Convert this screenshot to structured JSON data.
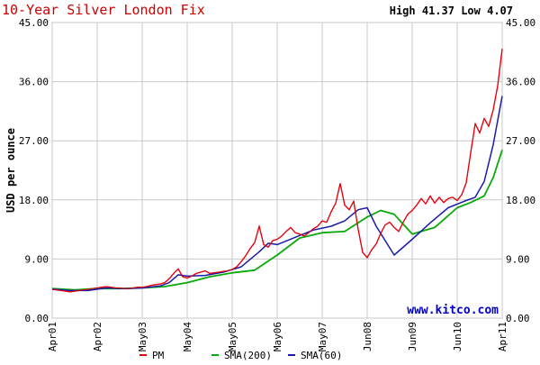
{
  "header": {
    "title": "10-Year Silver London Fix",
    "stats": "High 41.37 Low 4.07"
  },
  "watermark": "www.kitco.com",
  "colors": {
    "title": "#cc0000",
    "pm": "#e8000b",
    "sma200": "#0aa80a",
    "sma60": "#1c1ca8",
    "watermark": "#0000cc",
    "grid": "#c8c8c8",
    "frame": "#808080"
  },
  "chart_data": {
    "type": "line",
    "title": "10-Year Silver London Fix",
    "ylabel": "USD per ounce",
    "xlabel": "",
    "ylim": [
      0,
      45
    ],
    "yticks": [
      "0.00",
      "9.00",
      "18.00",
      "27.00",
      "36.00",
      "45.00"
    ],
    "xticks": [
      "Apr01",
      "Apr02",
      "May03",
      "May04",
      "May05",
      "May06",
      "May07",
      "Jun08",
      "Jun09",
      "Jun10",
      "Apr11"
    ],
    "grid": true,
    "legend": {
      "placement": "bottom",
      "entries": [
        "PM",
        "SMA(200)",
        "SMA(60)"
      ]
    },
    "series": [
      {
        "name": "PM",
        "x": [
          0,
          0.1,
          0.2,
          0.3,
          0.4,
          0.5,
          0.6,
          0.7,
          0.8,
          0.9,
          1.0,
          1.1,
          1.2,
          1.3,
          1.4,
          1.5,
          1.6,
          1.7,
          1.8,
          1.9,
          2.0,
          2.1,
          2.2,
          2.3,
          2.4,
          2.5,
          2.6,
          2.7,
          2.8,
          2.9,
          3.0,
          3.1,
          3.2,
          3.3,
          3.4,
          3.5,
          3.6,
          3.7,
          3.8,
          3.9,
          4.0,
          4.1,
          4.2,
          4.3,
          4.4,
          4.5,
          4.6,
          4.7,
          4.8,
          4.9,
          5.0,
          5.1,
          5.2,
          5.3,
          5.4,
          5.5,
          5.6,
          5.7,
          5.8,
          5.9,
          6.0,
          6.1,
          6.2,
          6.3,
          6.4,
          6.5,
          6.6,
          6.7,
          6.8,
          6.9,
          7.0,
          7.1,
          7.2,
          7.3,
          7.4,
          7.5,
          7.6,
          7.7,
          7.8,
          7.9,
          8.0,
          8.1,
          8.2,
          8.3,
          8.4,
          8.5,
          8.6,
          8.7,
          8.8,
          8.9,
          9.0,
          9.1,
          9.2,
          9.3,
          9.4,
          9.5,
          9.6,
          9.7,
          9.8,
          9.9,
          10.0
        ],
        "values": [
          4.4,
          4.3,
          4.2,
          4.1,
          4.0,
          4.1,
          4.2,
          4.3,
          4.4,
          4.5,
          4.6,
          4.7,
          4.8,
          4.7,
          4.6,
          4.6,
          4.5,
          4.5,
          4.6,
          4.7,
          4.7,
          4.8,
          5.0,
          5.1,
          5.2,
          5.4,
          6.0,
          6.8,
          7.5,
          6.3,
          6.1,
          6.4,
          6.8,
          7.0,
          7.2,
          6.8,
          6.9,
          7.0,
          7.1,
          7.2,
          7.4,
          7.8,
          8.6,
          9.5,
          10.6,
          11.5,
          14.0,
          11.2,
          10.8,
          11.8,
          12.0,
          12.5,
          13.2,
          13.8,
          13.0,
          12.8,
          12.5,
          13.0,
          13.6,
          14.0,
          14.8,
          14.6,
          16.2,
          17.5,
          20.5,
          17.2,
          16.5,
          17.8,
          13.5,
          10.0,
          9.2,
          10.4,
          11.3,
          12.9,
          14.2,
          14.6,
          13.8,
          13.2,
          14.6,
          15.8,
          16.4,
          17.2,
          18.2,
          17.4,
          18.6,
          17.5,
          18.4,
          17.6,
          18.2,
          18.4,
          17.9,
          18.8,
          20.6,
          25.2,
          29.6,
          28.2,
          30.4,
          29.2,
          31.7,
          35.4,
          41.0
        ]
      },
      {
        "name": "SMA(200)",
        "x": [
          0,
          0.5,
          1.0,
          1.5,
          2.0,
          2.5,
          3.0,
          3.5,
          4.0,
          4.5,
          5.0,
          5.5,
          6.0,
          6.5,
          7.0,
          7.3,
          7.6,
          8.0,
          8.5,
          9.0,
          9.3,
          9.6,
          9.8,
          10.0
        ],
        "values": [
          4.5,
          4.3,
          4.5,
          4.5,
          4.6,
          4.8,
          5.4,
          6.3,
          6.9,
          7.3,
          9.6,
          12.2,
          13.0,
          13.2,
          15.4,
          16.4,
          15.8,
          12.8,
          13.8,
          16.8,
          17.6,
          18.6,
          21.4,
          25.6
        ]
      },
      {
        "name": "SMA(60)",
        "x": [
          0,
          0.4,
          0.8,
          1.2,
          1.6,
          2.0,
          2.4,
          2.6,
          2.8,
          3.0,
          3.4,
          3.8,
          4.2,
          4.6,
          4.8,
          5.0,
          5.4,
          5.8,
          6.2,
          6.5,
          6.8,
          7.0,
          7.2,
          7.6,
          8.0,
          8.4,
          8.8,
          9.2,
          9.4,
          9.6,
          9.8,
          10.0
        ],
        "values": [
          4.4,
          4.2,
          4.2,
          4.6,
          4.5,
          4.6,
          4.9,
          5.4,
          6.6,
          6.4,
          6.5,
          7.0,
          7.8,
          10.1,
          11.4,
          11.2,
          12.3,
          13.4,
          14.0,
          14.8,
          16.5,
          16.8,
          14.0,
          9.6,
          12.0,
          14.5,
          16.8,
          17.9,
          18.4,
          20.8,
          26.4,
          33.8
        ]
      }
    ]
  }
}
